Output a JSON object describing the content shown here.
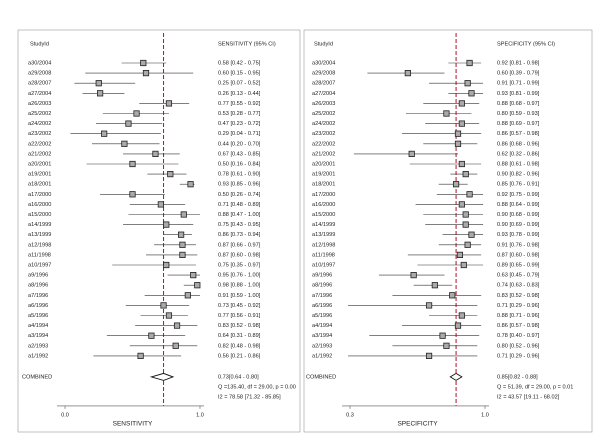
{
  "chart_data": [
    {
      "type": "forest",
      "id_header": "StudyId",
      "ci_header": "SENSITIVITY (95% CI)",
      "xlabel": "SENSITIVITY",
      "categories": [
        "a30/2004",
        "a29/2008",
        "a28/2007",
        "a27/2004",
        "a26/2003",
        "a25/2002",
        "a24/2002",
        "a23/2002",
        "a22/2002",
        "a21/2002",
        "a20/2001",
        "a19/2001",
        "a18/2001",
        "a17/2000",
        "a16/2000",
        "a15/2000",
        "a14/1999",
        "a13/1999",
        "a12/1998",
        "a11/1998",
        "a10/1997",
        "a9/1996",
        "a8/1996",
        "a7/1996",
        "a6/1996",
        "a5/1996",
        "a4/1994",
        "a3/1994",
        "a2/1993",
        "a1/1992"
      ],
      "values": [
        0.58,
        0.6,
        0.25,
        0.26,
        0.77,
        0.53,
        0.47,
        0.29,
        0.44,
        0.67,
        0.5,
        0.78,
        0.93,
        0.5,
        0.71,
        0.88,
        0.75,
        0.86,
        0.87,
        0.87,
        0.75,
        0.95,
        0.98,
        0.91,
        0.73,
        0.77,
        0.83,
        0.64,
        0.82,
        0.56
      ],
      "lower": [
        0.42,
        0.15,
        0.07,
        0.13,
        0.55,
        0.28,
        0.23,
        0.04,
        0.2,
        0.43,
        0.16,
        0.61,
        0.85,
        0.26,
        0.48,
        0.47,
        0.43,
        0.73,
        0.66,
        0.6,
        0.35,
        0.76,
        0.88,
        0.59,
        0.45,
        0.56,
        0.52,
        0.31,
        0.48,
        0.21
      ],
      "upper": [
        0.75,
        0.95,
        0.52,
        0.44,
        0.92,
        0.77,
        0.72,
        0.71,
        0.7,
        0.85,
        0.84,
        0.9,
        0.96,
        0.74,
        0.89,
        1.0,
        0.95,
        0.94,
        0.97,
        0.98,
        0.97,
        1.0,
        1.0,
        1.0,
        0.92,
        0.91,
        0.98,
        0.89,
        0.98,
        0.86
      ],
      "value_labels": [
        "0.58 [0.42 - 0.75]",
        "0.60 [0.15 - 0.95]",
        "0.25 [0.07 - 0.52]",
        "0.26 [0.13 - 0.44]",
        "0.77 [0.55 - 0.92]",
        "0.53 [0.28 - 0.77]",
        "0.47 [0.23 - 0.72]",
        "0.29 [0.04 - 0.71]",
        "0.44 [0.20 - 0.70]",
        "0.67 [0.43 - 0.85]",
        "0.50 [0.16 - 0.84]",
        "0.78 [0.61 - 0.90]",
        "0.93 [0.85 - 0.96]",
        "0.50 [0.26 - 0.74]",
        "0.71 [0.48 - 0.89]",
        "0.88 [0.47 - 1.00]",
        "0.75 [0.43 - 0.95]",
        "0.86 [0.73 - 0.94]",
        "0.87 [0.66 - 0.97]",
        "0.87 [0.60 - 0.98]",
        "0.75 [0.35 - 0.97]",
        "0.95 [0.76 - 1.00]",
        "0.98 [0.88 - 1.00]",
        "0.91 [0.59 - 1.00]",
        "0.73 [0.45 - 0.92]",
        "0.77 [0.56 - 0.91]",
        "0.83 [0.52 - 0.98]",
        "0.64 [0.31 - 0.89]",
        "0.82 [0.48 - 0.98]",
        "0.56 [0.21 - 0.86]"
      ],
      "combined": {
        "label": "COMBINED",
        "value": 0.73,
        "lower": 0.64,
        "upper": 0.8,
        "value_label": "0.73[0.64 - 0.80]"
      },
      "stats": [
        "Q =135.40, df = 29.00, p = 0.00",
        "I2 = 78.58 [71.32 - 85.85]"
      ],
      "xlim": [
        0,
        1
      ],
      "xticks": [
        {
          "value": 0,
          "label": "0.0"
        },
        {
          "value": 1,
          "label": "1.0"
        }
      ],
      "color": "#333333",
      "ref_color": "#b0102a"
    },
    {
      "type": "forest",
      "id_header": "StudyId",
      "ci_header": "SPECIFICITY (95% CI)",
      "xlabel": "SPECIFICITY",
      "categories": [
        "a30/2004",
        "a29/2008",
        "a28/2007",
        "a27/2004",
        "a26/2003",
        "a25/2002",
        "a24/2002",
        "a23/2002",
        "a22/2002",
        "a21/2002",
        "a20/2001",
        "a19/2001",
        "a18/2001",
        "a17/2000",
        "a16/2000",
        "a15/2000",
        "a14/1999",
        "a13/1999",
        "a12/1998",
        "a11/1998",
        "a10/1997",
        "a9/1996",
        "a8/1996",
        "a7/1996",
        "a6/1996",
        "a5/1996",
        "a4/1994",
        "a3/1994",
        "a2/1993",
        "a1/1992"
      ],
      "values": [
        0.92,
        0.6,
        0.91,
        0.93,
        0.88,
        0.8,
        0.88,
        0.86,
        0.86,
        0.62,
        0.88,
        0.9,
        0.85,
        0.92,
        0.88,
        0.9,
        0.9,
        0.93,
        0.91,
        0.87,
        0.89,
        0.63,
        0.74,
        0.83,
        0.71,
        0.88,
        0.86,
        0.78,
        0.8,
        0.71
      ],
      "lower": [
        0.81,
        0.39,
        0.71,
        0.81,
        0.68,
        0.59,
        0.69,
        0.57,
        0.68,
        0.32,
        0.61,
        0.82,
        0.76,
        0.75,
        0.64,
        0.68,
        0.69,
        0.78,
        0.76,
        0.6,
        0.65,
        0.45,
        0.63,
        0.52,
        0.29,
        0.71,
        0.57,
        0.4,
        0.52,
        0.29
      ],
      "upper": [
        0.98,
        0.79,
        0.99,
        0.99,
        0.97,
        0.93,
        0.97,
        0.98,
        0.96,
        0.86,
        0.98,
        0.96,
        0.91,
        0.99,
        0.99,
        0.99,
        0.99,
        0.99,
        0.98,
        0.98,
        0.99,
        0.79,
        0.83,
        0.98,
        0.96,
        0.96,
        0.98,
        0.97,
        0.96,
        0.96
      ],
      "value_labels": [
        "0.92 [0.81 - 0.98]",
        "0.60 [0.39 - 0.79]",
        "0.91 [0.71 - 0.99]",
        "0.93 [0.81 - 0.99]",
        "0.88 [0.68 - 0.97]",
        "0.80 [0.59 - 0.93]",
        "0.88 [0.69 - 0.97]",
        "0.86 [0.57 - 0.98]",
        "0.86 [0.68 - 0.96]",
        "0.62 [0.32 - 0.86]",
        "0.88 [0.61 - 0.98]",
        "0.90 [0.82 - 0.96]",
        "0.85 [0.76 - 0.91]",
        "0.92 [0.75 - 0.99]",
        "0.88 [0.64 - 0.99]",
        "0.90 [0.68 - 0.99]",
        "0.90 [0.69 - 0.99]",
        "0.93 [0.78 - 0.99]",
        "0.91 [0.76 - 0.98]",
        "0.87 [0.60 - 0.98]",
        "0.89 [0.65 - 0.99]",
        "0.63 [0.45 - 0.79]",
        "0.74 [0.63 - 0.83]",
        "0.83 [0.52 - 0.98]",
        "0.71 [0.29 - 0.96]",
        "0.88 [0.71 - 0.96]",
        "0.86 [0.57 - 0.98]",
        "0.78 [0.40 - 0.97]",
        "0.80 [0.52 - 0.96]",
        "0.71 [0.29 - 0.96]"
      ],
      "combined": {
        "label": "COMBINED",
        "value": 0.85,
        "lower": 0.82,
        "upper": 0.88,
        "value_label": "0.85[0.82 - 0.88]"
      },
      "stats": [
        "Q = 51.39, df = 29.00, p = 0.01",
        "I2 = 43.57 [19.11 - 68.02]"
      ],
      "xlim": [
        0.3,
        1
      ],
      "xticks": [
        0.3,
        {
          "value": 1,
          "label": "1.0"
        }
      ],
      "color": "#333333",
      "ref_color": "#b0102a"
    }
  ]
}
